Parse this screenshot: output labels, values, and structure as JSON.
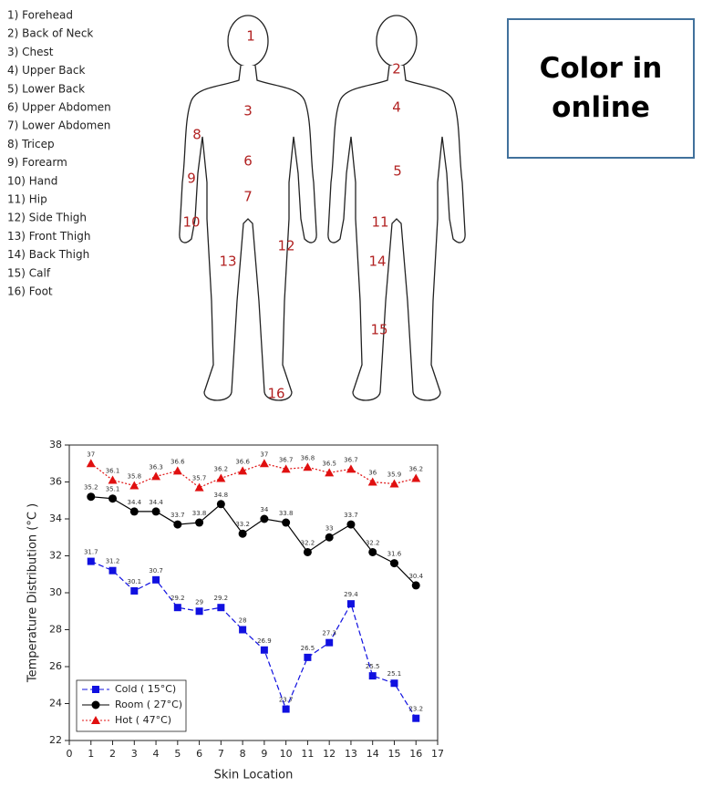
{
  "location_list": [
    "1) Forehead",
    "2) Back of Neck",
    "3) Chest",
    "4) Upper Back",
    "5) Lower Back",
    "6) Upper Abdomen",
    "7) Lower Abdomen",
    "8) Tricep",
    "9) Forearm",
    "10) Hand",
    "11) Hip",
    "12) Side Thigh",
    "13) Front Thigh",
    "14) Back Thigh",
    "15) Calf",
    "16) Foot"
  ],
  "front_figure_labels": [
    "1",
    "3",
    "6",
    "7",
    "8",
    "9",
    "10",
    "12",
    "13",
    "16"
  ],
  "back_figure_labels": [
    "2",
    "4",
    "5",
    "11",
    "14",
    "15"
  ],
  "note": "Color in online",
  "chart_data": {
    "type": "line",
    "x_label": "Skin Location",
    "y_label": "Temperature Distribution (°C )",
    "x": [
      1,
      2,
      3,
      4,
      5,
      6,
      7,
      8,
      9,
      10,
      11,
      12,
      13,
      14,
      15,
      16
    ],
    "series": [
      {
        "name": "Cold ( 15°C)",
        "color": "#1010e0",
        "marker": "square",
        "line_style": "dashed",
        "values": [
          31.7,
          31.2,
          30.1,
          30.7,
          29.2,
          29,
          29.2,
          28,
          26.9,
          23.7,
          26.5,
          27.3,
          29.4,
          25.5,
          25.1,
          23.2
        ]
      },
      {
        "name": "Room ( 27°C)",
        "color": "#000000",
        "marker": "circle",
        "line_style": "solid",
        "values": [
          35.2,
          35.1,
          34.4,
          34.4,
          33.7,
          33.8,
          34.8,
          33.2,
          34,
          33.8,
          32.2,
          33,
          33.7,
          32.2,
          31.6,
          30.4
        ]
      },
      {
        "name": "Hot ( 47°C)",
        "color": "#e01010",
        "marker": "triangle",
        "line_style": "dotted",
        "values": [
          37,
          36.1,
          35.8,
          36.3,
          36.6,
          35.7,
          36.2,
          36.6,
          37,
          36.7,
          36.8,
          36.5,
          36.7,
          36,
          35.9,
          36.2
        ]
      }
    ],
    "xlim": [
      0,
      17
    ],
    "xticks": [
      0,
      1,
      2,
      3,
      4,
      5,
      6,
      7,
      8,
      9,
      10,
      11,
      12,
      13,
      14,
      15,
      16,
      17
    ],
    "ylim": [
      22,
      38
    ],
    "yticks": [
      22,
      24,
      26,
      28,
      30,
      32,
      34,
      36,
      38
    ],
    "legend": "lower left",
    "value_labels_shown": true
  }
}
